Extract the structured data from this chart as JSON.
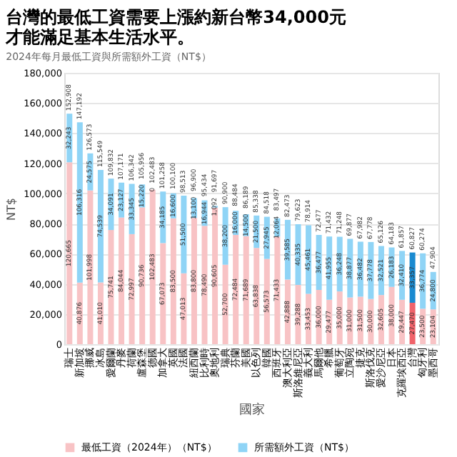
{
  "chart_data": {
    "type": "bar",
    "stacked": true,
    "title": "台灣的最低工資需要上漲約新台幣34,000元才能滿足基本生活水平。",
    "subtitle": "2024年每月最低工資與所需額外工資（NT$）",
    "xlabel": "國家",
    "ylabel": "NT$",
    "categories": [
      "瑞士",
      "新加坡",
      "挪威",
      "冰島",
      "愛爾蘭",
      "丹麥",
      "荷蘭",
      "盧森堡",
      "德國",
      "加拿大",
      "英國",
      "法國",
      "紐西蘭",
      "比利時",
      "奧地利",
      "瑞典",
      "芬蘭",
      "美國",
      "以色列",
      "韓國",
      "西班牙",
      "澳大利亞",
      "斯洛維尼亞",
      "義大利",
      "馬爾他",
      "希臘",
      "葡萄牙",
      "立陶宛",
      "捷克",
      "斯洛伐克",
      "愛沙尼亞",
      "日本",
      "克羅埃西亞",
      "台灣",
      "匈牙利",
      "墨西哥"
    ],
    "series": [
      {
        "name": "最低工資（2024年）（NT$）",
        "color": "#f8c3c5",
        "colors": [
          "#f8c3c5",
          "#f8c3c5",
          "#f8c3c5",
          "#f8c3c5",
          "#f8c3c5",
          "#f8c3c5",
          "#f8c3c5",
          "#f8c3c5",
          "#f8c3c5",
          "#f8c3c5",
          "#f8c3c5",
          "#f8c3c5",
          "#f8c3c5",
          "#f8c3c5",
          "#f8c3c5",
          "#f8c3c5",
          "#f8c3c5",
          "#f8c3c5",
          "#f8c3c5",
          "#f8c3c5",
          "#f8c3c5",
          "#f8c3c5",
          "#f8c3c5",
          "#f8c3c5",
          "#f8c3c5",
          "#f8c3c5",
          "#f8c3c5",
          "#f8c3c5",
          "#f8c3c5",
          "#f8c3c5",
          "#f8c3c5",
          "#f8c3c5",
          "#f8c3c5",
          "#f0636a",
          "#f8c3c5",
          "#f8c3c5"
        ],
        "value_labels": [
          "120,665",
          "40,876",
          "101,998",
          "41,010",
          "75,741",
          "84,044",
          "72,997",
          "90,736",
          "102,483",
          "67,073",
          "83,500",
          "47,013",
          "83,800",
          "78,490",
          "90,605",
          "52,700",
          "72,484",
          "71,689",
          "63,838",
          "56,573",
          "71,433",
          "42,888",
          "39,288",
          "33,453",
          "36,000",
          "29,477",
          "35,000",
          "31,000",
          "31,500",
          "30,000",
          "32,605",
          "38,000",
          "29,447",
          "27,470",
          "23,500",
          "23,104"
        ],
        "values": [
          120665,
          40876,
          101998,
          41010,
          75741,
          84044,
          72997,
          90736,
          102483,
          67073,
          83500,
          47013,
          83800,
          78490,
          90605,
          52700,
          72484,
          71689,
          63838,
          56573,
          71433,
          42888,
          39288,
          33453,
          36000,
          29477,
          35000,
          31000,
          31500,
          30000,
          32605,
          38000,
          29447,
          27470,
          23500,
          23104
        ]
      },
      {
        "name": "所需額外工資（NT$）",
        "color": "#8fd4f6",
        "colors": [
          "#8fd4f6",
          "#8fd4f6",
          "#8fd4f6",
          "#8fd4f6",
          "#8fd4f6",
          "#8fd4f6",
          "#8fd4f6",
          "#8fd4f6",
          "#8fd4f6",
          "#8fd4f6",
          "#8fd4f6",
          "#8fd4f6",
          "#8fd4f6",
          "#8fd4f6",
          "#8fd4f6",
          "#8fd4f6",
          "#8fd4f6",
          "#8fd4f6",
          "#8fd4f6",
          "#8fd4f6",
          "#8fd4f6",
          "#8fd4f6",
          "#8fd4f6",
          "#8fd4f6",
          "#8fd4f6",
          "#8fd4f6",
          "#8fd4f6",
          "#8fd4f6",
          "#8fd4f6",
          "#8fd4f6",
          "#8fd4f6",
          "#8fd4f6",
          "#8fd4f6",
          "#1a8ad0",
          "#8fd4f6",
          "#8fd4f6"
        ],
        "value_labels": [
          "32,243",
          "106,316",
          "24,575",
          "74,539",
          "34,091",
          "23,127",
          "33,345",
          "15,220",
          "0",
          "34,185",
          "16,600",
          "51,500",
          "13,100",
          "16,944",
          "1,092",
          "38,200",
          "16,000",
          "14,500",
          "21,500",
          "27,945",
          "12,064",
          "39,585",
          "40,335",
          "45,461",
          "36,477",
          "41,955",
          "36,248",
          "38,877",
          "36,482",
          "37,778",
          "32,521",
          "26,183",
          "32,410",
          "33,357",
          "36,774",
          "24,800"
        ],
        "values": [
          32243,
          106316,
          24575,
          74539,
          34091,
          23127,
          33345,
          15220,
          0,
          34185,
          16600,
          51500,
          13100,
          16944,
          1092,
          38200,
          16000,
          14500,
          21500,
          27945,
          12064,
          39585,
          40335,
          45461,
          36477,
          41955,
          36248,
          38877,
          36482,
          37778,
          32521,
          26183,
          32410,
          33357,
          36774,
          24800
        ]
      }
    ],
    "totals": [
      "152,908",
      "147,192",
      "126,573",
      "115,549",
      "109,832",
      "107,171",
      "106,342",
      "105,956",
      "102,483",
      "101,258",
      "100,100",
      "98,513",
      "96,900",
      "95,434",
      "91,697",
      "90,900",
      "88,484",
      "86,189",
      "85,338",
      "84,518",
      "83,497",
      "82,473",
      "79,623",
      "78,914",
      "72,477",
      "71,432",
      "71,248",
      "69,877",
      "67,982",
      "67,778",
      "65,126",
      "64,183",
      "61,857",
      "60,827",
      "60,274",
      "47,904"
    ],
    "ylim": [
      0,
      180000
    ],
    "yticks": [
      0,
      {
        "value": 20000,
        "label": "20,000"
      },
      {
        "value": 40000,
        "label": "40,000"
      },
      {
        "value": 60000,
        "label": "60,000"
      },
      {
        "value": 80000,
        "label": "80,000"
      },
      {
        "value": 100000,
        "label": "100,000"
      },
      {
        "value": 120000,
        "label": "120,000"
      },
      {
        "value": 140000,
        "label": "140,000"
      },
      {
        "value": 160000,
        "label": "160,000"
      },
      {
        "value": 180000,
        "label": "180,000"
      }
    ],
    "grid": "y",
    "legend": "bottom"
  }
}
